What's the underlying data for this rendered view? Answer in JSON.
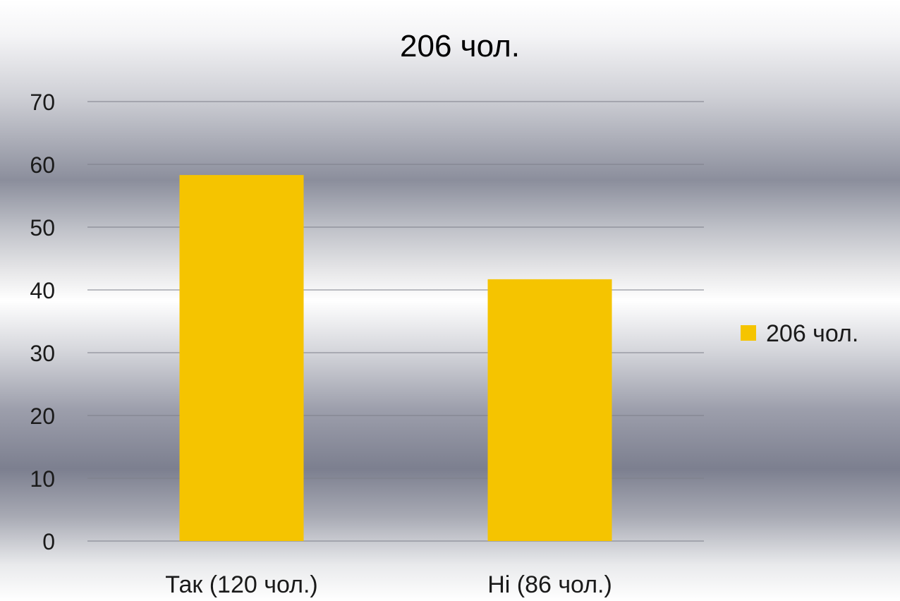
{
  "chart_data": {
    "type": "bar",
    "title": "206 чол.",
    "categories": [
      "Так (120 чол.)",
      "Ні (86 чол.)"
    ],
    "series": [
      {
        "name": "206 чол.",
        "values": [
          58.3,
          41.7
        ],
        "color": "#f5c400"
      }
    ],
    "ylim": [
      0,
      70
    ],
    "yticks": [
      0,
      10,
      20,
      30,
      40,
      50,
      60,
      70
    ],
    "grid": true,
    "legend_position": "right"
  }
}
